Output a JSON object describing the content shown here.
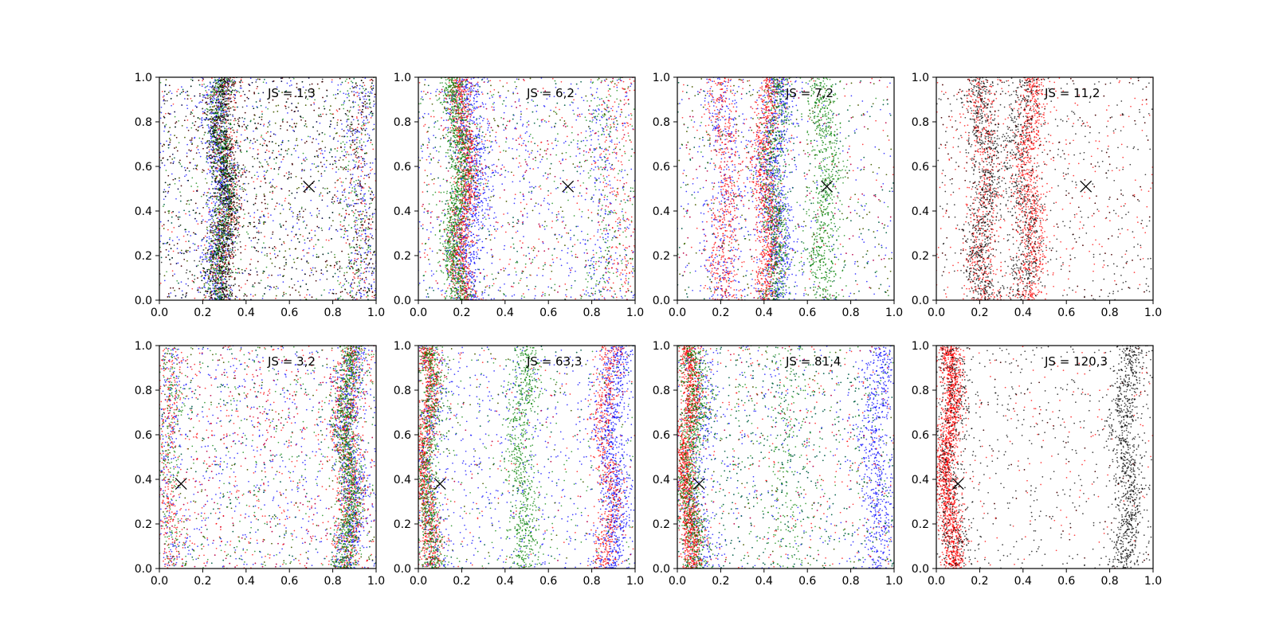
{
  "chart_data": [
    {
      "type": "scatter",
      "annotation": "JS = 1,3",
      "xlim": [
        0,
        1
      ],
      "ylim": [
        0,
        1
      ],
      "x_ticks": [
        "0.0",
        "0.2",
        "0.4",
        "0.6",
        "0.8",
        "1.0"
      ],
      "y_ticks": [
        "0.0",
        "0.2",
        "0.4",
        "0.6",
        "0.8",
        "1.0"
      ],
      "marker": {
        "x": 0.69,
        "y": 0.51
      },
      "series": [
        {
          "color": "#0000ff",
          "bands": [
            [
              0.28,
              0.035,
              0.45
            ],
            [
              0.93,
              0.04,
              0.1
            ]
          ]
        },
        {
          "color": "#ff0000",
          "bands": [
            [
              0.3,
              0.035,
              0.45
            ],
            [
              0.92,
              0.04,
              0.1
            ]
          ]
        },
        {
          "color": "#008000",
          "bands": [
            [
              0.29,
              0.03,
              0.55
            ],
            [
              0.9,
              0.04,
              0.08
            ]
          ]
        },
        {
          "color": "#000000",
          "bands": [
            [
              0.3,
              0.035,
              0.45
            ],
            [
              0.92,
              0.04,
              0.08
            ]
          ]
        }
      ]
    },
    {
      "type": "scatter",
      "annotation": "JS = 6,2",
      "xlim": [
        0,
        1
      ],
      "ylim": [
        0,
        1
      ],
      "x_ticks": [
        "0.0",
        "0.2",
        "0.4",
        "0.6",
        "0.8",
        "1.0"
      ],
      "y_ticks": [
        "0.0",
        "0.2",
        "0.4",
        "0.6",
        "0.8",
        "1.0"
      ],
      "marker": {
        "x": 0.69,
        "y": 0.51
      },
      "series": [
        {
          "color": "#0000ff",
          "bands": [
            [
              0.24,
              0.04,
              0.45
            ],
            [
              0.85,
              0.06,
              0.1
            ]
          ]
        },
        {
          "color": "#ff0000",
          "bands": [
            [
              0.21,
              0.03,
              0.55
            ],
            [
              0.92,
              0.05,
              0.1
            ]
          ]
        },
        {
          "color": "#008000",
          "bands": [
            [
              0.18,
              0.03,
              0.6
            ],
            [
              0.86,
              0.06,
              0.1
            ]
          ]
        }
      ]
    },
    {
      "type": "scatter",
      "annotation": "JS = 7,2",
      "xlim": [
        0,
        1
      ],
      "ylim": [
        0,
        1
      ],
      "x_ticks": [
        "0.0",
        "0.2",
        "0.4",
        "0.6",
        "0.8",
        "1.0"
      ],
      "y_ticks": [
        "0.0",
        "0.2",
        "0.4",
        "0.6",
        "0.8",
        "1.0"
      ],
      "marker": {
        "x": 0.69,
        "y": 0.51
      },
      "series": [
        {
          "color": "#0000ff",
          "bands": [
            [
              0.45,
              0.04,
              0.5
            ],
            [
              0.22,
              0.05,
              0.2
            ]
          ]
        },
        {
          "color": "#ff0000",
          "bands": [
            [
              0.41,
              0.03,
              0.45
            ],
            [
              0.22,
              0.04,
              0.3
            ]
          ]
        },
        {
          "color": "#008000",
          "bands": [
            [
              0.45,
              0.03,
              0.35
            ],
            [
              0.68,
              0.04,
              0.4
            ]
          ]
        }
      ]
    },
    {
      "type": "scatter",
      "annotation": "JS = 11,2",
      "xlim": [
        0,
        1
      ],
      "ylim": [
        0,
        1
      ],
      "x_ticks": [
        "0.0",
        "0.2",
        "0.4",
        "0.6",
        "0.8",
        "1.0"
      ],
      "y_ticks": [
        "0.0",
        "0.2",
        "0.4",
        "0.6",
        "0.8",
        "1.0"
      ],
      "marker": {
        "x": 0.69,
        "y": 0.51
      },
      "series": [
        {
          "color": "#ff0000",
          "bands": [
            [
              0.43,
              0.035,
              0.45
            ],
            [
              0.22,
              0.04,
              0.3
            ]
          ]
        },
        {
          "color": "#000000",
          "bands": [
            [
              0.22,
              0.04,
              0.4
            ],
            [
              0.4,
              0.04,
              0.3
            ]
          ]
        }
      ]
    },
    {
      "type": "scatter",
      "annotation": "JS = 3,2",
      "xlim": [
        0,
        1
      ],
      "ylim": [
        0,
        1
      ],
      "x_ticks": [
        "0.0",
        "0.2",
        "0.4",
        "0.6",
        "0.8",
        "1.0"
      ],
      "y_ticks": [
        "0.0",
        "0.2",
        "0.4",
        "0.6",
        "0.8",
        "1.0"
      ],
      "marker": {
        "x": 0.1,
        "y": 0.38
      },
      "series": [
        {
          "color": "#0000ff",
          "bands": [
            [
              0.88,
              0.035,
              0.4
            ],
            [
              0.05,
              0.03,
              0.08
            ]
          ]
        },
        {
          "color": "#ff0000",
          "bands": [
            [
              0.87,
              0.035,
              0.4
            ],
            [
              0.04,
              0.03,
              0.15
            ]
          ]
        },
        {
          "color": "#008000",
          "bands": [
            [
              0.87,
              0.03,
              0.55
            ],
            [
              0.05,
              0.03,
              0.1
            ]
          ]
        }
      ]
    },
    {
      "type": "scatter",
      "annotation": "JS = 63,3",
      "xlim": [
        0,
        1
      ],
      "ylim": [
        0,
        1
      ],
      "x_ticks": [
        "0.0",
        "0.2",
        "0.4",
        "0.6",
        "0.8",
        "1.0"
      ],
      "y_ticks": [
        "0.0",
        "0.2",
        "0.4",
        "0.6",
        "0.8",
        "1.0"
      ],
      "marker": {
        "x": 0.1,
        "y": 0.38
      },
      "series": [
        {
          "color": "#0000ff",
          "bands": [
            [
              0.9,
              0.035,
              0.45
            ],
            [
              0.05,
              0.03,
              0.15
            ]
          ]
        },
        {
          "color": "#ff0000",
          "bands": [
            [
              0.04,
              0.025,
              0.55
            ],
            [
              0.87,
              0.03,
              0.35
            ]
          ]
        },
        {
          "color": "#008000",
          "bands": [
            [
              0.05,
              0.03,
              0.4
            ],
            [
              0.48,
              0.035,
              0.4
            ]
          ]
        }
      ]
    },
    {
      "type": "scatter",
      "annotation": "JS = 81,4",
      "xlim": [
        0,
        1
      ],
      "ylim": [
        0,
        1
      ],
      "x_ticks": [
        "0.0",
        "0.2",
        "0.4",
        "0.6",
        "0.8",
        "1.0"
      ],
      "y_ticks": [
        "0.0",
        "0.2",
        "0.4",
        "0.6",
        "0.8",
        "1.0"
      ],
      "marker": {
        "x": 0.1,
        "y": 0.38
      },
      "series": [
        {
          "color": "#0000ff",
          "bands": [
            [
              0.92,
              0.04,
              0.35
            ],
            [
              0.1,
              0.04,
              0.2
            ]
          ]
        },
        {
          "color": "#ff0000",
          "bands": [
            [
              0.05,
              0.025,
              0.75
            ]
          ]
        },
        {
          "color": "#008000",
          "bands": [
            [
              0.07,
              0.03,
              0.45
            ],
            [
              0.5,
              0.06,
              0.1
            ]
          ]
        }
      ]
    },
    {
      "type": "scatter",
      "annotation": "JS = 120,3",
      "xlim": [
        0,
        1
      ],
      "ylim": [
        0,
        1
      ],
      "x_ticks": [
        "0.0",
        "0.2",
        "0.4",
        "0.6",
        "0.8",
        "1.0"
      ],
      "y_ticks": [
        "0.0",
        "0.2",
        "0.4",
        "0.6",
        "0.8",
        "1.0"
      ],
      "marker": {
        "x": 0.1,
        "y": 0.38
      },
      "series": [
        {
          "color": "#ff0000",
          "bands": [
            [
              0.06,
              0.025,
              0.85
            ]
          ]
        },
        {
          "color": "#000000",
          "bands": [
            [
              0.88,
              0.035,
              0.45
            ],
            [
              0.07,
              0.04,
              0.25
            ]
          ]
        }
      ]
    }
  ]
}
